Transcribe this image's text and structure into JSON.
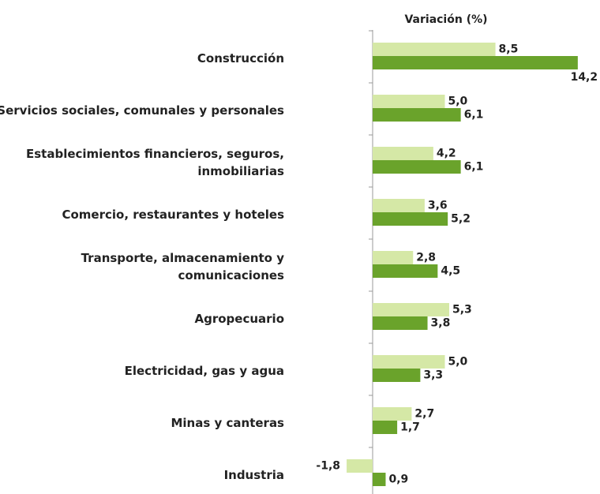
{
  "chart_data": {
    "type": "bar",
    "orientation": "horizontal",
    "title": "Variación (%)",
    "categories": [
      "Construcción",
      "Servicios sociales, comunales y personales",
      "Establecimientos financieros, seguros, inmobiliarias",
      "Comercio, restaurantes y hoteles",
      "Transporte, almacenamiento y comunicaciones",
      "Agropecuario",
      "Electricidad, gas y agua",
      "Minas y canteras",
      "Industria"
    ],
    "series": [
      {
        "color": "#d5e8a6",
        "values": [
          8.5,
          5.0,
          4.2,
          3.6,
          2.8,
          5.3,
          5.0,
          2.7,
          -1.8
        ],
        "value_labels": [
          "8,5",
          "5,0",
          "4,2",
          "3,6",
          "2,8",
          "5,3",
          "5,0",
          "2,7",
          "-1,8"
        ]
      },
      {
        "color": "#6aa32b",
        "values": [
          14.2,
          6.1,
          6.1,
          5.2,
          4.5,
          3.8,
          3.3,
          1.7,
          0.9
        ],
        "value_labels": [
          "14,2",
          "6,1",
          "6,1",
          "5,2",
          "4,5",
          "3,8",
          "3,3",
          "1,7",
          "0,9"
        ]
      }
    ]
  }
}
